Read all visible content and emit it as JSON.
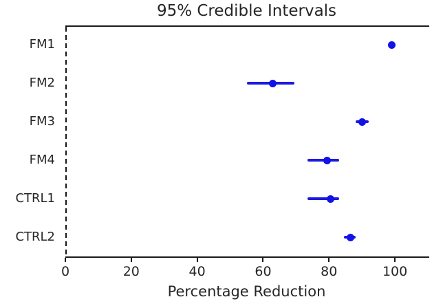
{
  "chart_data": {
    "type": "scatter",
    "variant": "horizontal-dot-plot-with-error-bars",
    "title": "95% Credible Intervals",
    "xlabel": "Percentage Reduction",
    "ylabel": "",
    "categories": [
      "FM1",
      "FM2",
      "FM3",
      "FM4",
      "CTRL1",
      "CTRL2"
    ],
    "series": [
      {
        "name": "95% credible interval",
        "means": [
          99,
          63,
          90,
          79.5,
          80.5,
          86.5
        ],
        "ci_low": [
          98.5,
          55,
          88,
          73.5,
          73.5,
          84.5
        ],
        "ci_high": [
          99.5,
          69.5,
          92,
          83,
          83,
          88
        ]
      }
    ],
    "xlim": [
      0,
      110
    ],
    "xticks": [
      0,
      20,
      40,
      60,
      80,
      100
    ],
    "grid": false,
    "legend": false,
    "annotations": [
      {
        "type": "vline",
        "x": 0,
        "style": "dashed",
        "color": "#141414"
      }
    ],
    "colors": {
      "marker": "#1111e8",
      "error_bar": "#1a1ae0",
      "spine": "#1a1a1a",
      "text": "#262626",
      "background": "#ffffff"
    }
  }
}
